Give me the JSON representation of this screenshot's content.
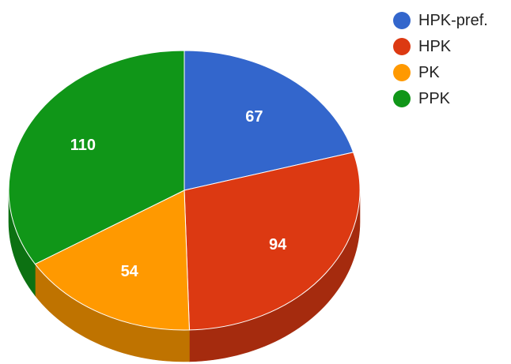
{
  "chart_data": {
    "type": "pie",
    "style": "3d",
    "start_angle_deg": 0,
    "direction": "clockwise",
    "categories": [
      "HPK-pref.",
      "HPK",
      "PK",
      "PPK"
    ],
    "values": [
      67,
      94,
      54,
      110
    ],
    "colors": [
      "#3366cc",
      "#dc3912",
      "#ff9900",
      "#109618"
    ],
    "side_colors": [
      "#264d99",
      "#a52b0e",
      "#bf7300",
      "#0c7112"
    ],
    "data_labels": [
      "67",
      "94",
      "54",
      "110"
    ],
    "title": "",
    "legend_position": "right-top"
  }
}
